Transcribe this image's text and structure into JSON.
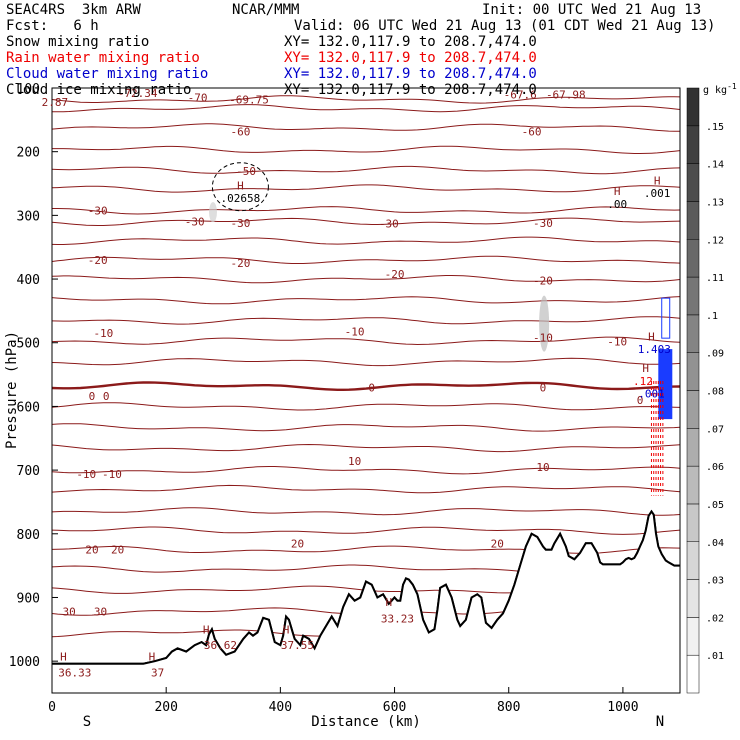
{
  "header": {
    "model": "SEAC4RS  3km ARW",
    "org": "NCAR/MMM",
    "init": "Init: 00 UTC Wed 21 Aug 13",
    "fcst": "Fcst:   6 h",
    "valid": "Valid: 06 UTC Wed 21 Aug 13 (01 CDT Wed 21 Aug 13)",
    "fields": [
      {
        "label": "Snow mixing ratio",
        "xy": "XY= 132.0,117.9 to 208.7,474.0",
        "color": "#000000"
      },
      {
        "label": "Rain water mixing ratio",
        "xy": "XY= 132.0,117.9 to 208.7,474.0",
        "color": "#ee0000"
      },
      {
        "label": "Cloud water mixing ratio",
        "xy": "XY= 132.0,117.9 to 208.7,474.0",
        "color": "#0000cc"
      },
      {
        "label": "Cloud ice mixing ratio",
        "xy": "XY= 132.0,117.9 to 208.7,474.0",
        "color": "#000000"
      }
    ]
  },
  "chart_data": {
    "type": "cross-section contour",
    "xlabel": "Distance (km)",
    "ylabel": "Pressure (hPa)",
    "xlim": [
      0,
      1100
    ],
    "ylim": [
      1050,
      100
    ],
    "x_ticks": [
      0,
      200,
      400,
      600,
      800,
      1000
    ],
    "y_ticks": [
      100,
      200,
      300,
      400,
      500,
      600,
      700,
      800,
      900,
      1000
    ],
    "x_end_labels": {
      "left": "S",
      "right": "N"
    },
    "colorbar": {
      "unit": "g kg",
      "unit_sup": "-1",
      "ticks": [
        ".01",
        ".02",
        ".03",
        ".04",
        ".05",
        ".06",
        ".07",
        ".08",
        ".09",
        ".1",
        ".11",
        ".12",
        ".13",
        ".14",
        ".15"
      ],
      "levels": [
        0,
        0.01,
        0.02,
        0.03,
        0.04,
        0.05,
        0.06,
        0.07,
        0.08,
        0.09,
        0.1,
        0.11,
        0.12,
        0.13,
        0.14,
        0.15,
        0.16
      ]
    },
    "temperature_isotherms": [
      -70,
      -60,
      -50,
      -40,
      -30,
      -20,
      -10,
      0,
      10,
      20,
      30
    ],
    "temperature_labels": [
      {
        "text": "-72.34",
        "x": 150,
        "p": 108
      },
      {
        "text": "-70",
        "x": 255,
        "p": 115
      },
      {
        "text": "-69.75",
        "x": 345,
        "p": 118
      },
      {
        "text": "-67.6",
        "x": 820,
        "p": 110
      },
      {
        "text": "-67.98",
        "x": 900,
        "p": 110
      },
      {
        "text": "2.87",
        "x": 5,
        "p": 122
      },
      {
        "text": "-60",
        "x": 330,
        "p": 168
      },
      {
        "text": "-60",
        "x": 840,
        "p": 168
      },
      {
        "text": "-50",
        "x": 340,
        "p": 230
      },
      {
        "text": "-30",
        "x": 250,
        "p": 310
      },
      {
        "text": "-30",
        "x": 330,
        "p": 312
      },
      {
        "text": "-30",
        "x": 590,
        "p": 313
      },
      {
        "text": "-30",
        "x": 860,
        "p": 312
      },
      {
        "text": "-30",
        "x": 80,
        "p": 292
      },
      {
        "text": "-20",
        "x": 80,
        "p": 370
      },
      {
        "text": "-20",
        "x": 330,
        "p": 375
      },
      {
        "text": "-20",
        "x": 600,
        "p": 392
      },
      {
        "text": "-20",
        "x": 860,
        "p": 402
      },
      {
        "text": "-10",
        "x": 90,
        "p": 485
      },
      {
        "text": "-10",
        "x": 530,
        "p": 482
      },
      {
        "text": "-10",
        "x": 860,
        "p": 492
      },
      {
        "text": "-10",
        "x": 990,
        "p": 498
      },
      {
        "text": "0",
        "x": 70,
        "p": 584
      },
      {
        "text": "0",
        "x": 95,
        "p": 584
      },
      {
        "text": "0",
        "x": 560,
        "p": 570
      },
      {
        "text": "0",
        "x": 860,
        "p": 570
      },
      {
        "text": "0",
        "x": 1030,
        "p": 590
      },
      {
        "text": "10",
        "x": 530,
        "p": 686
      },
      {
        "text": "10",
        "x": 860,
        "p": 695
      },
      {
        "text": "-10",
        "x": 60,
        "p": 706
      },
      {
        "text": "-10",
        "x": 105,
        "p": 706
      },
      {
        "text": "20",
        "x": 70,
        "p": 825
      },
      {
        "text": "20",
        "x": 115,
        "p": 825
      },
      {
        "text": "20",
        "x": 430,
        "p": 815
      },
      {
        "text": "20",
        "x": 780,
        "p": 815
      },
      {
        "text": "30",
        "x": 30,
        "p": 922
      },
      {
        "text": "30",
        "x": 85,
        "p": 922
      },
      {
        "text": "36.33",
        "x": 40,
        "p": 1018
      },
      {
        "text": "37",
        "x": 185,
        "p": 1018
      },
      {
        "text": "36.62",
        "x": 295,
        "p": 975
      },
      {
        "text": "37.55",
        "x": 430,
        "p": 975
      },
      {
        "text": "33.23",
        "x": 605,
        "p": 933
      }
    ],
    "high_markers": [
      {
        "text": "H",
        "x": 20,
        "p": 993
      },
      {
        "text": "H",
        "x": 175,
        "p": 993
      },
      {
        "text": "H",
        "x": 270,
        "p": 950
      },
      {
        "text": "H",
        "x": 410,
        "p": 950
      },
      {
        "text": "H",
        "x": 590,
        "p": 907
      },
      {
        "text": "H",
        "x": 330,
        "p": 253
      },
      {
        "text": "H",
        "x": 990,
        "p": 262
      },
      {
        "text": "H",
        "x": 1060,
        "p": 245
      },
      {
        "text": "H",
        "x": 1050,
        "p": 490
      },
      {
        "text": "H",
        "x": 1040,
        "p": 540
      }
    ],
    "value_labels": [
      {
        "text": ".02658",
        "x": 330,
        "p": 273,
        "color": "#000000"
      },
      {
        "text": ".00",
        "x": 990,
        "p": 282,
        "color": "#000000"
      },
      {
        "text": ".001",
        "x": 1060,
        "p": 265,
        "color": "#000000"
      },
      {
        "text": "1.403",
        "x": 1055,
        "p": 510,
        "color": "#0000cc"
      },
      {
        "text": ".12",
        "x": 1035,
        "p": 560,
        "color": "#ee0000"
      },
      {
        "text": ".001",
        "x": 1050,
        "p": 580,
        "color": "#0000cc"
      }
    ],
    "terrain": [
      [
        0,
        1004
      ],
      [
        160,
        1004
      ],
      [
        180,
        1000
      ],
      [
        200,
        995
      ],
      [
        210,
        985
      ],
      [
        220,
        980
      ],
      [
        235,
        985
      ],
      [
        250,
        975
      ],
      [
        262,
        970
      ],
      [
        270,
        975
      ],
      [
        275,
        958
      ],
      [
        280,
        950
      ],
      [
        285,
        965
      ],
      [
        295,
        980
      ],
      [
        305,
        990
      ],
      [
        320,
        985
      ],
      [
        335,
        965
      ],
      [
        345,
        955
      ],
      [
        352,
        960
      ],
      [
        360,
        955
      ],
      [
        370,
        932
      ],
      [
        380,
        935
      ],
      [
        390,
        970
      ],
      [
        400,
        975
      ],
      [
        405,
        960
      ],
      [
        410,
        930
      ],
      [
        415,
        935
      ],
      [
        425,
        965
      ],
      [
        435,
        975
      ],
      [
        440,
        960
      ],
      [
        450,
        965
      ],
      [
        460,
        980
      ],
      [
        470,
        960
      ],
      [
        480,
        945
      ],
      [
        490,
        930
      ],
      [
        500,
        945
      ],
      [
        510,
        915
      ],
      [
        520,
        895
      ],
      [
        530,
        905
      ],
      [
        540,
        900
      ],
      [
        550,
        875
      ],
      [
        560,
        880
      ],
      [
        570,
        900
      ],
      [
        580,
        895
      ],
      [
        590,
        910
      ],
      [
        595,
        905
      ],
      [
        600,
        900
      ],
      [
        605,
        905
      ],
      [
        610,
        905
      ],
      [
        615,
        880
      ],
      [
        620,
        870
      ],
      [
        625,
        872
      ],
      [
        632,
        880
      ],
      [
        640,
        895
      ],
      [
        650,
        935
      ],
      [
        660,
        955
      ],
      [
        670,
        950
      ],
      [
        675,
        920
      ],
      [
        680,
        885
      ],
      [
        690,
        880
      ],
      [
        700,
        900
      ],
      [
        710,
        935
      ],
      [
        715,
        945
      ],
      [
        725,
        935
      ],
      [
        735,
        900
      ],
      [
        745,
        895
      ],
      [
        752,
        900
      ],
      [
        760,
        940
      ],
      [
        770,
        948
      ],
      [
        780,
        935
      ],
      [
        790,
        925
      ],
      [
        800,
        905
      ],
      [
        810,
        880
      ],
      [
        820,
        850
      ],
      [
        830,
        820
      ],
      [
        840,
        800
      ],
      [
        850,
        805
      ],
      [
        860,
        820
      ],
      [
        865,
        825
      ],
      [
        875,
        825
      ],
      [
        880,
        815
      ],
      [
        890,
        800
      ],
      [
        900,
        820
      ],
      [
        905,
        835
      ],
      [
        915,
        840
      ],
      [
        925,
        830
      ],
      [
        935,
        815
      ],
      [
        945,
        815
      ],
      [
        955,
        830
      ],
      [
        960,
        845
      ],
      [
        965,
        848
      ],
      [
        980,
        848
      ],
      [
        995,
        848
      ],
      [
        1000,
        845
      ],
      [
        1005,
        840
      ],
      [
        1010,
        838
      ],
      [
        1015,
        840
      ],
      [
        1020,
        838
      ],
      [
        1025,
        830
      ],
      [
        1030,
        820
      ],
      [
        1035,
        810
      ],
      [
        1040,
        795
      ],
      [
        1045,
        772
      ],
      [
        1050,
        765
      ],
      [
        1054,
        770
      ],
      [
        1058,
        800
      ],
      [
        1062,
        820
      ],
      [
        1068,
        832
      ],
      [
        1075,
        842
      ],
      [
        1080,
        845
      ],
      [
        1090,
        850
      ],
      [
        1100,
        850
      ]
    ]
  }
}
